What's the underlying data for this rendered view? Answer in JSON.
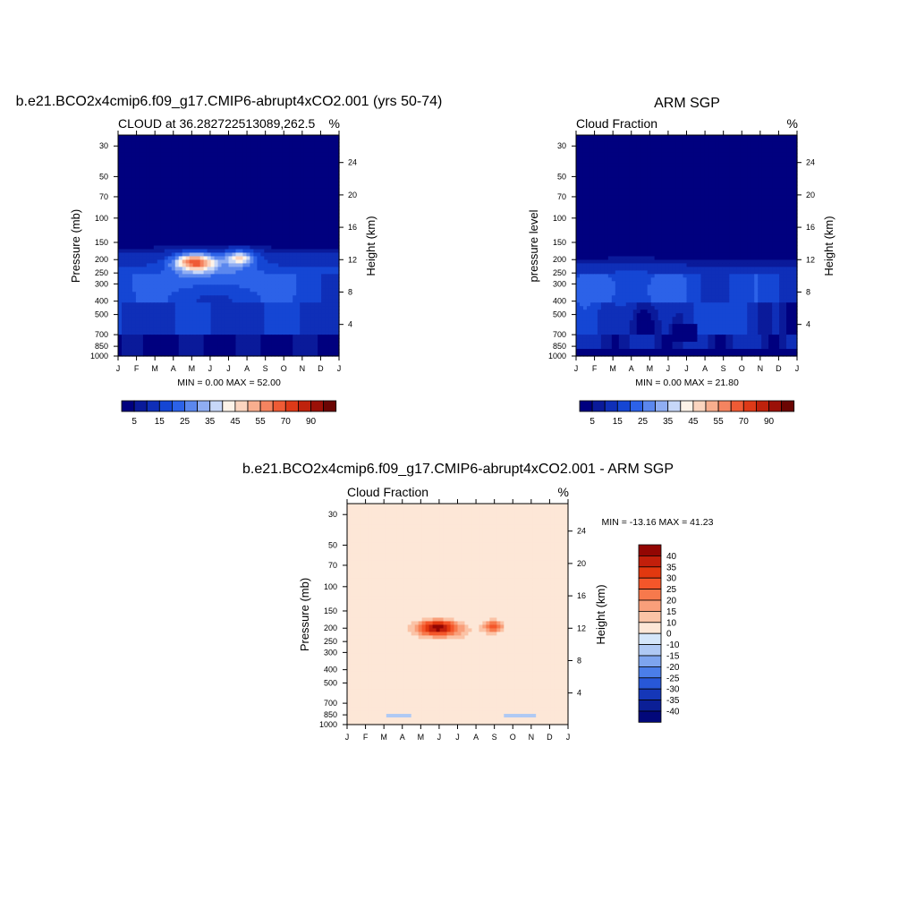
{
  "panels": [
    {
      "id": "model",
      "title": "b.e21.BCO2x4cmip6.f09_g17.CMIP6-abrupt4xCO2.001 (yrs 50-74)",
      "subtitle_left": "CLOUD at 36.282722513089,262.5",
      "subtitle_right": "%",
      "ylabel_left": "Pressure (mb)",
      "ylabel_right": "Height (km)",
      "stats": "MIN =   0.00 MAX =  52.00",
      "stat_min": 0.0,
      "stat_max": 52.0,
      "blobs": [
        {
          "month": 4.2,
          "p": 208,
          "amp": 48,
          "sx": 1.1,
          "sy": 0.14
        },
        {
          "month": 6.6,
          "p": 195,
          "amp": 33,
          "sx": 0.8,
          "sy": 0.12
        },
        {
          "month": 5.2,
          "p": 262,
          "amp": 10,
          "sx": 2.6,
          "sy": 0.25
        }
      ]
    },
    {
      "id": "obs",
      "title": "ARM SGP",
      "subtitle_left": "Cloud Fraction",
      "subtitle_right": "%",
      "ylabel_left": "pressure level",
      "ylabel_right": "Height (km)",
      "stats": "MIN =   0.00 MAX =  21.80",
      "stat_min": 0.0,
      "stat_max": 21.8,
      "blobs": [
        {
          "month": 3.0,
          "p": 330,
          "amp": 6,
          "sx": 3.0,
          "sy": 0.35
        }
      ]
    },
    {
      "id": "diff",
      "title": "b.e21.BCO2x4cmip6.f09_g17.CMIP6-abrupt4xCO2.001 - ARM SGP",
      "subtitle_left": "Cloud Fraction",
      "subtitle_right": "%",
      "ylabel_left": "Pressure (mb)",
      "ylabel_right": "Height (km)",
      "stats": "MIN = -13.16 MAX =  41.23",
      "stat_min": -13.16,
      "stat_max": 41.23,
      "blobs": [
        {
          "month": 4.9,
          "p": 198,
          "amp": 36,
          "sx": 1.15,
          "sy": 0.13
        },
        {
          "month": 7.95,
          "p": 195,
          "amp": 26,
          "sx": 0.55,
          "sy": 0.11
        },
        {
          "month": 5.5,
          "p": 220,
          "amp": 8,
          "sx": 2.3,
          "sy": 0.24
        }
      ]
    }
  ],
  "chart_data": [
    {
      "type": "heatmap",
      "title": "b.e21.BCO2x4cmip6.f09_g17.CMIP6-abrupt4xCO2.001 (yrs 50-74)",
      "subtitle": "CLOUD at 36.282722513089,262.5",
      "units": "%",
      "x": [
        "J",
        "F",
        "M",
        "A",
        "M",
        "J",
        "J",
        "A",
        "S",
        "O",
        "N",
        "D",
        "J"
      ],
      "pressure_ticks": [
        30,
        50,
        70,
        100,
        150,
        200,
        250,
        300,
        400,
        500,
        700,
        850,
        1000
      ],
      "height_ticks": [
        4,
        8,
        12,
        16,
        20,
        24
      ],
      "ylim": [
        1000,
        25
      ],
      "min": 0.0,
      "max": 52.0,
      "colorbar_levels": [
        5,
        15,
        25,
        35,
        45,
        55,
        70,
        90
      ]
    },
    {
      "type": "heatmap",
      "title": "ARM SGP",
      "subtitle": "Cloud Fraction",
      "units": "%",
      "x": [
        "J",
        "F",
        "M",
        "A",
        "M",
        "J",
        "J",
        "A",
        "S",
        "O",
        "N",
        "D",
        "J"
      ],
      "pressure_ticks": [
        30,
        50,
        70,
        100,
        150,
        200,
        250,
        300,
        400,
        500,
        700,
        850,
        1000
      ],
      "height_ticks": [
        4,
        8,
        12,
        16,
        20,
        24
      ],
      "ylim": [
        1000,
        25
      ],
      "min": 0.0,
      "max": 21.8,
      "colorbar_levels": [
        5,
        15,
        25,
        35,
        45,
        55,
        70,
        90
      ]
    },
    {
      "type": "heatmap",
      "title": "b.e21.BCO2x4cmip6.f09_g17.CMIP6-abrupt4xCO2.001 - ARM SGP",
      "subtitle": "Cloud Fraction",
      "units": "%",
      "x": [
        "J",
        "F",
        "M",
        "A",
        "M",
        "J",
        "J",
        "A",
        "S",
        "O",
        "N",
        "D",
        "J"
      ],
      "pressure_ticks": [
        30,
        50,
        70,
        100,
        150,
        200,
        250,
        300,
        400,
        500,
        700,
        850,
        1000
      ],
      "height_ticks": [
        4,
        8,
        12,
        16,
        20,
        24
      ],
      "ylim": [
        1000,
        25
      ],
      "min": -13.16,
      "max": 41.23,
      "colorbar_levels": [
        40,
        35,
        30,
        25,
        20,
        15,
        10,
        0,
        -10,
        -15,
        -20,
        -25,
        -30,
        -35,
        -40
      ]
    }
  ],
  "axes": {
    "months": [
      "J",
      "F",
      "M",
      "A",
      "M",
      "J",
      "J",
      "A",
      "S",
      "O",
      "N",
      "D",
      "J"
    ],
    "pressure_ticks": [
      30,
      50,
      70,
      100,
      150,
      200,
      250,
      300,
      400,
      500,
      700,
      850,
      1000
    ],
    "height_ticks": [
      4,
      8,
      12,
      16,
      20,
      24
    ]
  },
  "colorbar_seq": {
    "labels": [
      "5",
      "15",
      "25",
      "35",
      "45",
      "55",
      "70",
      "90"
    ],
    "levels": [
      2.5,
      5,
      10,
      15,
      20,
      25,
      30,
      35,
      40,
      45,
      50,
      55,
      60,
      70,
      80,
      90
    ],
    "colors": [
      "#00007f",
      "#0a1a9a",
      "#0f2fb8",
      "#1546d4",
      "#2c62e8",
      "#5b87ee",
      "#8fadf3",
      "#c7d7f8",
      "#fdf3e8",
      "#fbd5bf",
      "#f8ae8e",
      "#f58460",
      "#ef5b35",
      "#de3a18",
      "#bf220c",
      "#9b1007",
      "#6b0503"
    ]
  },
  "colorbar_div": {
    "labels": [
      "40",
      "35",
      "30",
      "25",
      "20",
      "15",
      "10",
      "0",
      "-10",
      "-15",
      "-20",
      "-25",
      "-30",
      "-35",
      "-40"
    ],
    "colors": [
      "#930603",
      "#c21f0b",
      "#e2380f",
      "#f4562a",
      "#f7794c",
      "#f99f7a",
      "#fbc3a6",
      "#fde7d7",
      "#d4e6fa",
      "#afc9f4",
      "#7ea5ef",
      "#4b7ee9",
      "#2858d8",
      "#1537b8",
      "#0b1f96",
      "#02087a"
    ]
  }
}
